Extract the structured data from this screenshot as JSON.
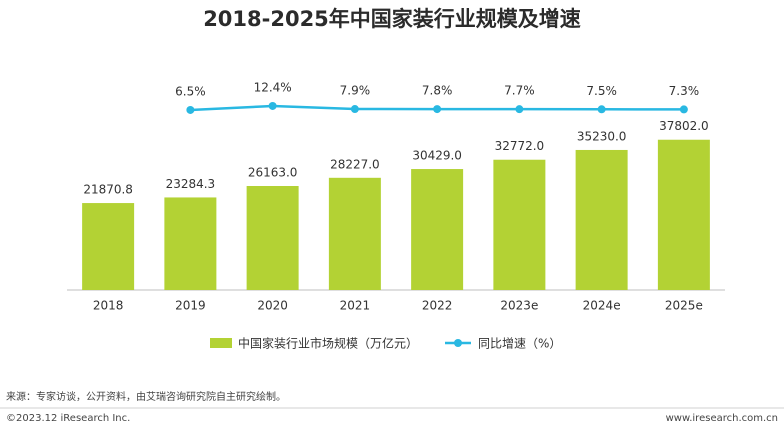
{
  "chart_data": {
    "type": "bar",
    "title": "2018-2025年中国家装行业规模及增速",
    "categories": [
      "2018",
      "2019",
      "2020",
      "2021",
      "2022",
      "2023e",
      "2024e",
      "2025e"
    ],
    "series": [
      {
        "name": "中国家装行业市场规模（万亿元）",
        "type": "bar",
        "color": "#b3d234",
        "values": [
          21870.8,
          23284.3,
          26163.0,
          28227.0,
          30429.0,
          32772.0,
          35230.0,
          37802.0
        ],
        "value_labels": [
          "21870.8",
          "23284.3",
          "26163.0",
          "28227.0",
          "30429.0",
          "32772.0",
          "35230.0",
          "37802.0"
        ]
      },
      {
        "name": "同比增速（%）",
        "type": "line",
        "axis": "y2",
        "color": "#29b8e2",
        "values": [
          null,
          6.5,
          12.4,
          7.9,
          7.8,
          7.7,
          7.5,
          7.3
        ],
        "value_labels": [
          null,
          "6.5%",
          "12.4%",
          "7.9%",
          "7.8%",
          "7.7%",
          "7.5%",
          "7.3%"
        ]
      }
    ],
    "ylim": [
      0,
      40000
    ],
    "y2lim": [
      0,
      20
    ],
    "grid": false,
    "legend": "bottom",
    "source": "来源：专家访谈，公开资料，由艾瑞咨询研究院自主研究绘制。",
    "copyright": "©2023.12 iResearch Inc.",
    "website": "www.iresearch.com.cn"
  }
}
